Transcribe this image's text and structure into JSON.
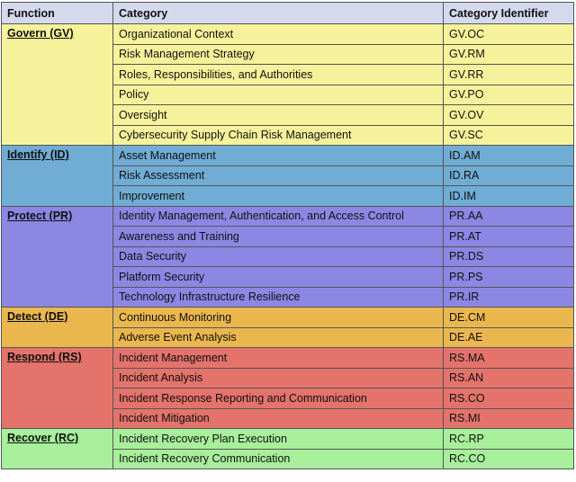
{
  "headers": {
    "function": "Function",
    "category": "Category",
    "identifier": "Category Identifier"
  },
  "colors": {
    "header": "#d5d9ee",
    "govern": "#f6f29b",
    "identify": "#70acd4",
    "protect": "#8c87e3",
    "detect": "#eab74f",
    "respond": "#e3736b",
    "recover": "#a7ef9b"
  },
  "functions": [
    {
      "key": "govern",
      "name": "Govern (GV)",
      "categories": [
        {
          "name": "Organizational Context",
          "id": "GV.OC"
        },
        {
          "name": "Risk Management Strategy",
          "id": "GV.RM"
        },
        {
          "name": "Roles, Responsibilities, and Authorities",
          "id": "GV.RR"
        },
        {
          "name": "Policy",
          "id": "GV.PO"
        },
        {
          "name": "Oversight",
          "id": "GV.OV"
        },
        {
          "name": "Cybersecurity Supply Chain Risk Management",
          "id": "GV.SC"
        }
      ]
    },
    {
      "key": "identify",
      "name": "Identify (ID)",
      "categories": [
        {
          "name": "Asset Management",
          "id": "ID.AM"
        },
        {
          "name": "Risk Assessment",
          "id": "ID.RA"
        },
        {
          "name": "Improvement",
          "id": "ID.IM"
        }
      ]
    },
    {
      "key": "protect",
      "name": "Protect (PR)",
      "categories": [
        {
          "name": "Identity Management, Authentication, and Access Control",
          "id": "PR.AA"
        },
        {
          "name": "Awareness and Training",
          "id": "PR.AT"
        },
        {
          "name": "Data Security",
          "id": "PR.DS"
        },
        {
          "name": "Platform Security",
          "id": "PR.PS"
        },
        {
          "name": "Technology Infrastructure Resilience",
          "id": "PR.IR"
        }
      ]
    },
    {
      "key": "detect",
      "name": "Detect (DE)",
      "categories": [
        {
          "name": "Continuous Monitoring",
          "id": "DE.CM"
        },
        {
          "name": "Adverse Event Analysis",
          "id": "DE.AE"
        }
      ]
    },
    {
      "key": "respond",
      "name": "Respond (RS)",
      "categories": [
        {
          "name": "Incident Management",
          "id": "RS.MA"
        },
        {
          "name": "Incident Analysis",
          "id": "RS.AN"
        },
        {
          "name": "Incident Response Reporting and Communication",
          "id": "RS.CO"
        },
        {
          "name": "Incident Mitigation",
          "id": "RS.MI"
        }
      ]
    },
    {
      "key": "recover",
      "name": "Recover (RC)",
      "categories": [
        {
          "name": "Incident Recovery Plan Execution",
          "id": "RC.RP"
        },
        {
          "name": "Incident Recovery Communication",
          "id": "RC.CO"
        }
      ]
    }
  ]
}
